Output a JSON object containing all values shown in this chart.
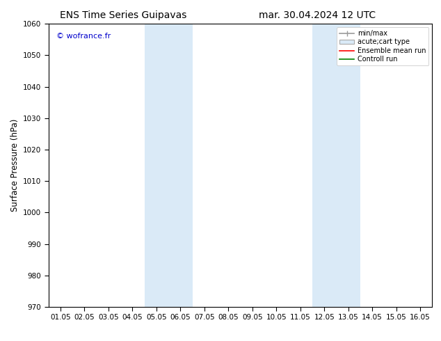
{
  "title_left": "ENS Time Series Guipavas",
  "title_right": "mar. 30.04.2024 12 UTC",
  "ylabel": "Surface Pressure (hPa)",
  "ylim": [
    970,
    1060
  ],
  "yticks": [
    970,
    980,
    990,
    1000,
    1010,
    1020,
    1030,
    1040,
    1050,
    1060
  ],
  "xtick_labels": [
    "01.05",
    "02.05",
    "03.05",
    "04.05",
    "05.05",
    "06.05",
    "07.05",
    "08.05",
    "09.05",
    "10.05",
    "11.05",
    "12.05",
    "13.05",
    "14.05",
    "15.05",
    "16.05"
  ],
  "xtick_positions": [
    0,
    1,
    2,
    3,
    4,
    5,
    6,
    7,
    8,
    9,
    10,
    11,
    12,
    13,
    14,
    15
  ],
  "xlim": [
    -0.5,
    15.5
  ],
  "shaded_regions": [
    {
      "xmin": 3.5,
      "xmax": 5.5,
      "color": "#daeaf7"
    },
    {
      "xmin": 10.5,
      "xmax": 12.5,
      "color": "#daeaf7"
    }
  ],
  "watermark": "© wofrance.fr",
  "watermark_color": "#0000cc",
  "bg_color": "#ffffff",
  "spine_color": "#000000",
  "tick_color": "#000000",
  "title_fontsize": 10,
  "tick_fontsize": 7.5,
  "ylabel_fontsize": 8.5,
  "watermark_fontsize": 8,
  "legend_fontsize": 7
}
